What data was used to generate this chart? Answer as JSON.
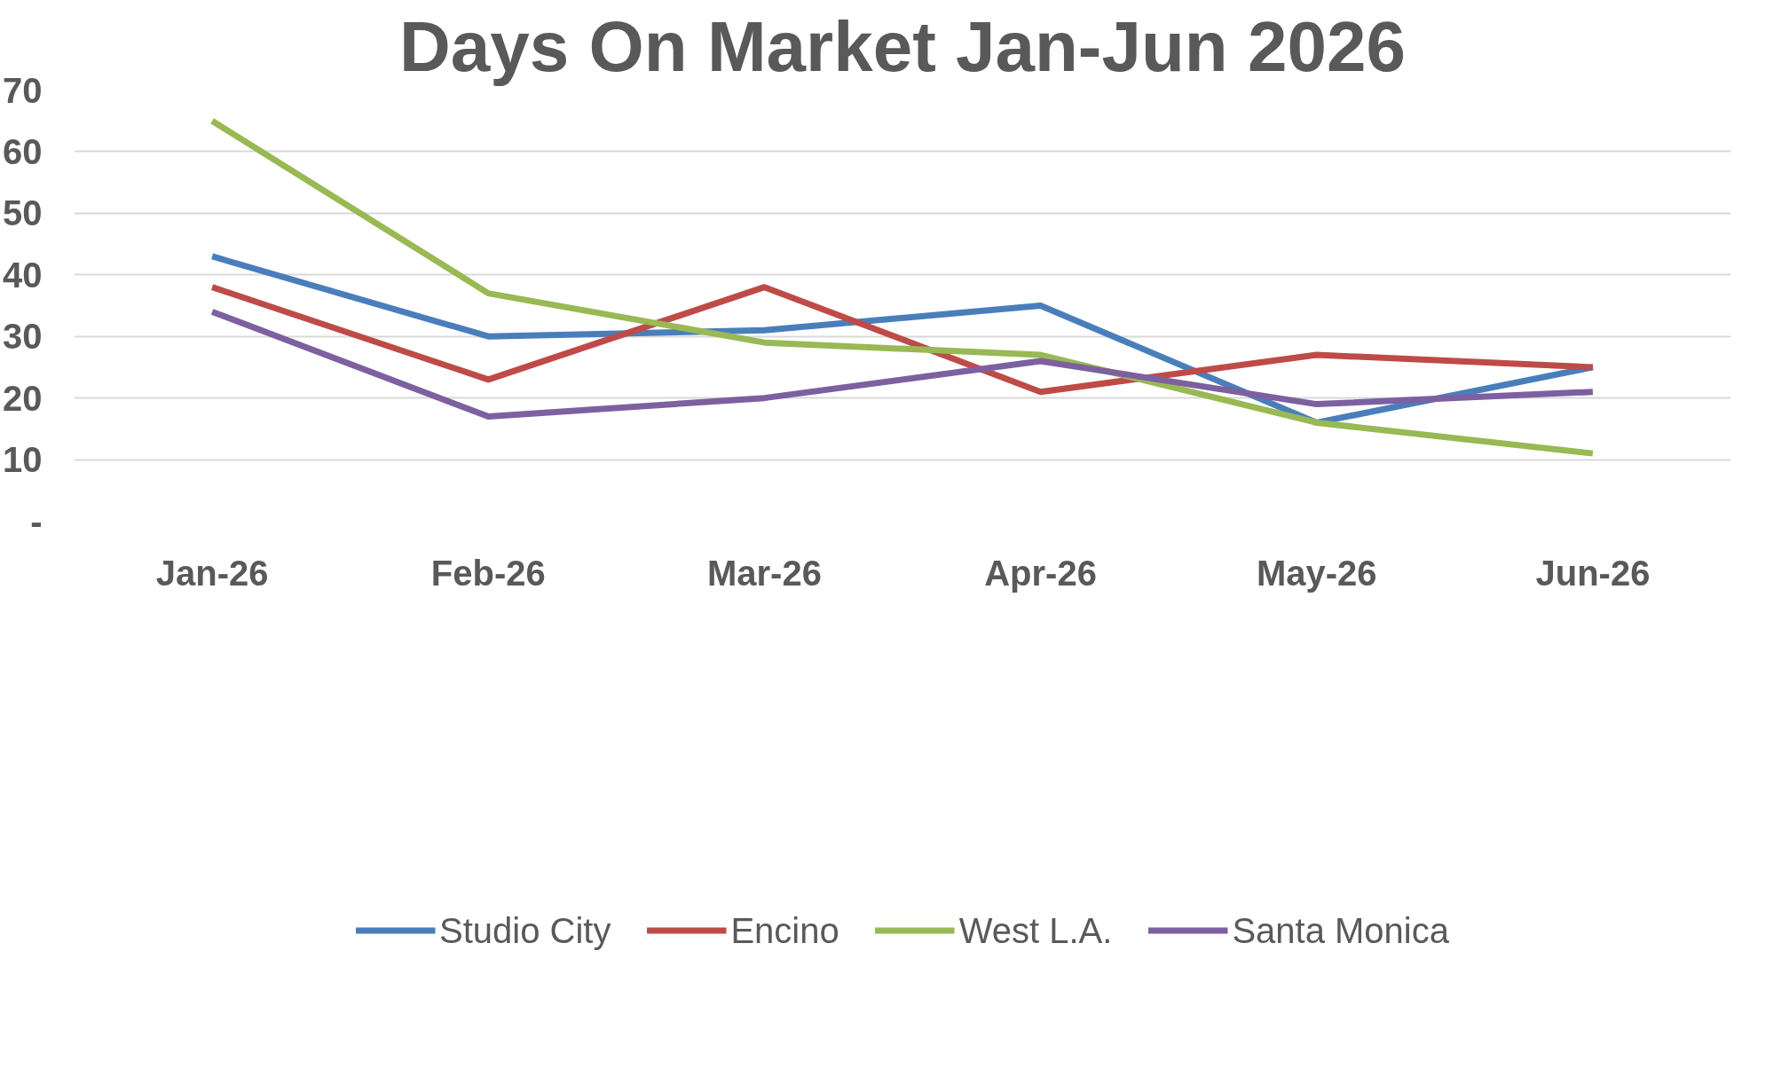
{
  "chart_data": {
    "type": "line",
    "title": "Days On Market Jan-Jun 2026",
    "categories": [
      "Jan-26",
      "Feb-26",
      "Mar-26",
      "Apr-26",
      "May-26",
      "Jun-26"
    ],
    "series": [
      {
        "name": "Studio City",
        "color": "#4a7ebb",
        "values": [
          43,
          30,
          31,
          35,
          16,
          25
        ]
      },
      {
        "name": "Encino",
        "color": "#be4b48",
        "values": [
          38,
          23,
          38,
          21,
          27,
          25
        ]
      },
      {
        "name": "West L.A.",
        "color": "#98b954",
        "values": [
          65,
          37,
          29,
          27,
          16,
          11
        ]
      },
      {
        "name": "Santa Monica",
        "color": "#7d60a0",
        "values": [
          34,
          17,
          20,
          26,
          19,
          21
        ]
      }
    ],
    "ylim": [
      0,
      70
    ],
    "yticks": [
      {
        "value": 0,
        "label": "-"
      },
      10,
      20,
      30,
      40,
      50,
      60,
      70
    ],
    "grid": "y",
    "legend": "bottom",
    "marker": "none",
    "line_style": "solid"
  }
}
